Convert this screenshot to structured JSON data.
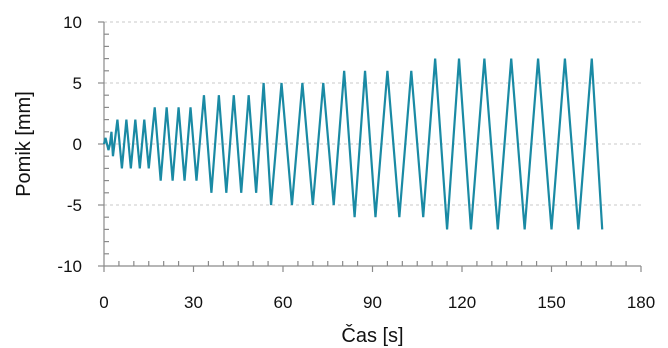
{
  "chart_data": {
    "type": "line",
    "xlabel": "Čas [s]",
    "ylabel": "Pomik [mm]",
    "xlim": [
      0,
      180
    ],
    "ylim": [
      -10,
      10
    ],
    "xticks": [
      0,
      30,
      60,
      90,
      120,
      150,
      180
    ],
    "xtick_labels": [
      "0",
      "30",
      "60",
      "90",
      "120",
      "150",
      "180"
    ],
    "yticks": [
      -10,
      -5,
      0,
      5,
      10
    ],
    "ytick_labels": [
      "-10",
      "-5",
      "0",
      "5",
      "10"
    ],
    "grid": true,
    "line_color": "#1a8aa4",
    "series": [
      {
        "x": [
          0,
          0.5,
          1,
          1.5,
          2,
          2.5,
          3,
          4.5,
          6,
          7.5,
          9,
          10.5,
          12,
          13.5,
          15,
          17,
          19,
          21,
          23,
          25,
          27,
          29,
          31,
          33.5,
          36,
          38.5,
          41,
          43.5,
          46,
          48.5,
          51,
          53.5,
          56,
          59.5,
          63,
          66.5,
          70,
          73.5,
          77,
          80.5,
          84,
          87.5,
          91,
          95,
          99,
          103,
          107,
          111,
          115,
          119,
          123,
          127.5,
          132,
          136.5,
          141,
          145.5,
          150,
          154.5,
          159,
          163.5,
          167
        ],
        "y": [
          0,
          0.5,
          0,
          -0.5,
          0,
          1,
          -1,
          2,
          -2,
          2,
          -2,
          2,
          -2,
          2,
          -2,
          3,
          -3,
          3,
          -3,
          3,
          -3,
          3,
          -3,
          4,
          -4,
          4,
          -4,
          4,
          -4,
          4,
          -4,
          5,
          -5,
          5,
          -5,
          5,
          -5,
          5,
          -5,
          6,
          -6,
          6,
          -6,
          6,
          -6,
          6,
          -6,
          7,
          -7,
          7,
          -7,
          7,
          -7,
          7,
          -7,
          7,
          -7,
          7,
          -7,
          7,
          -7
        ]
      }
    ]
  }
}
